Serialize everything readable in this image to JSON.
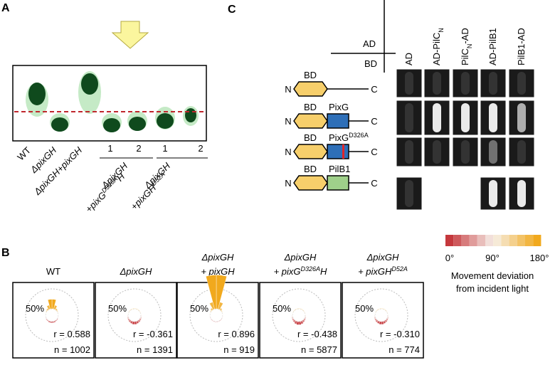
{
  "panel_a": {
    "label": "A",
    "lanes": [
      [
        [
          {
            "text": "WT"
          }
        ]
      ],
      [
        [
          {
            "text": "ΔpixGH",
            "style": "italic"
          }
        ]
      ],
      [
        [
          {
            "text": "ΔpixGH+pixGH",
            "style": "italic"
          }
        ]
      ]
    ],
    "groups": [
      {
        "numbers": [
          "1",
          "2"
        ],
        "label": [
          [
            {
              "text": "ΔpixGH",
              "style": "italic"
            }
          ],
          [
            {
              "text": "+pixG",
              "style": "italic"
            },
            {
              "text": "D326A",
              "style": "italic sup"
            },
            {
              "text": "H",
              "style": "italic"
            }
          ]
        ]
      },
      {
        "numbers": [
          "1",
          "2"
        ],
        "label": [
          [
            {
              "text": "ΔpixGH",
              "style": "italic"
            }
          ],
          [
            {
              "text": "+pixGH",
              "style": "italic"
            },
            {
              "text": "D52A",
              "style": "italic sup"
            }
          ]
        ]
      }
    ]
  },
  "panel_b": {
    "label": "B",
    "plots": [
      {
        "title": [
          [
            {
              "text": "WT"
            }
          ]
        ],
        "scale": "50%",
        "r": "r = 0.588",
        "n": "n = 1002",
        "petals": [
          3,
          3,
          2,
          2,
          1,
          1,
          1,
          1,
          2,
          4,
          10,
          24
        ]
      },
      {
        "title": [
          [
            {
              "text": "ΔpixGH",
              "style": "italic"
            }
          ]
        ],
        "scale": "50%",
        "r": "r = -0.361",
        "n": "n = 1391",
        "petals": [
          7,
          6,
          5,
          4,
          3,
          2,
          1,
          1,
          1,
          1,
          1,
          1
        ]
      },
      {
        "title": [
          [
            {
              "text": "ΔpixGH",
              "style": "italic"
            }
          ],
          [
            {
              "text": "+ pixGH",
              "style": "italic"
            }
          ]
        ],
        "scale": "50%",
        "r": "r = 0.896",
        "n": "n = 919",
        "petals": [
          1,
          1,
          1,
          1,
          1,
          1,
          1,
          1,
          2,
          5,
          18,
          85
        ]
      },
      {
        "title": [
          [
            {
              "text": "ΔpixGH",
              "style": "italic"
            }
          ],
          [
            {
              "text": "+ pixG",
              "style": "italic"
            },
            {
              "text": "D326A",
              "style": "italic sup"
            },
            {
              "text": "H",
              "style": "italic"
            }
          ]
        ],
        "scale": "50%",
        "r": "r = -0.438",
        "n": "n = 5877",
        "petals": [
          8,
          7,
          5,
          4,
          3,
          2,
          1,
          1,
          1,
          1,
          1,
          1
        ]
      },
      {
        "title": [
          [
            {
              "text": "ΔpixGH",
              "style": "italic"
            }
          ],
          [
            {
              "text": "+ pixGH",
              "style": "italic"
            },
            {
              "text": "D52A",
              "style": "italic sup"
            }
          ]
        ],
        "scale": "50%",
        "r": "r = -0.310",
        "n": "n = 774",
        "petals": [
          7,
          6,
          5,
          4,
          3,
          2,
          1,
          1,
          1,
          1,
          1,
          1
        ]
      }
    ],
    "legend": {
      "ticks": [
        "0°",
        "90°",
        "180°"
      ],
      "caption": [
        "Movement deviation",
        "from incident light"
      ]
    }
  },
  "panel_c": {
    "label": "C",
    "ad": "AD",
    "bd": "BD",
    "columns": [
      [
        {
          "text": "AD"
        }
      ],
      [
        {
          "text": "AD-PilC"
        },
        {
          "text": "N",
          "style": "sub"
        }
      ],
      [
        {
          "text": "PilC"
        },
        {
          "text": "N",
          "style": "sub"
        },
        {
          "text": "-AD"
        }
      ],
      [
        {
          "text": "AD-PilB1"
        }
      ],
      [
        {
          "text": "PilB1-AD"
        }
      ]
    ],
    "constructs": [
      {
        "n": "N",
        "bd": "BD",
        "c": "C",
        "domain": null,
        "color": null
      },
      {
        "n": "N",
        "bd": "BD",
        "c": "C",
        "domain": [
          {
            "text": "PixG"
          }
        ],
        "color": "#2e6fb8"
      },
      {
        "n": "N",
        "bd": "BD",
        "c": "C",
        "domain": [
          {
            "text": "PixG"
          },
          {
            "text": "D326A",
            "style": "sup"
          }
        ],
        "color": "#2e6fb8",
        "mutation": true
      },
      {
        "n": "N",
        "bd": "BD",
        "c": "C",
        "domain": [
          {
            "text": "PilB1"
          }
        ],
        "color": "#9fd08a"
      }
    ],
    "growth": [
      [
        0,
        0,
        0,
        0,
        0
      ],
      [
        0,
        3,
        3,
        3,
        2
      ],
      [
        0,
        0,
        0,
        1,
        0
      ],
      [
        0,
        null,
        null,
        3,
        3
      ]
    ]
  }
}
